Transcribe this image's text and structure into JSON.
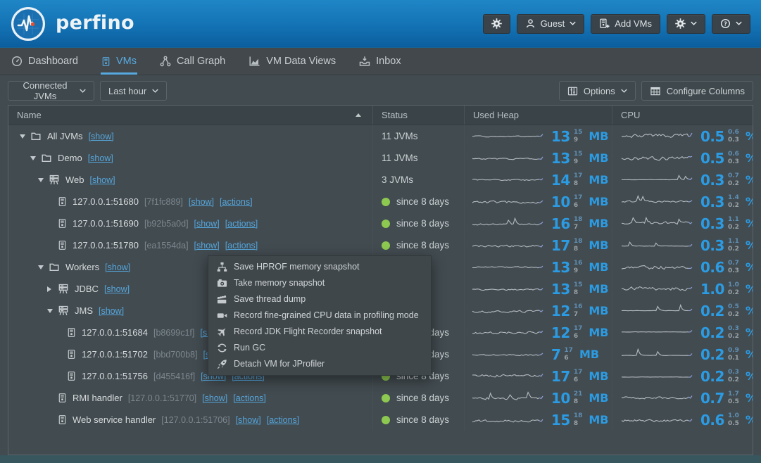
{
  "header": {
    "app_name": "perfino",
    "guest_label": "Guest",
    "add_vms_label": "Add VMs"
  },
  "nav": {
    "tabs": [
      {
        "label": "Dashboard",
        "icon": "dashboard-gauge-icon",
        "active": false
      },
      {
        "label": "VMs",
        "icon": "vm-icon",
        "active": true
      },
      {
        "label": "Call Graph",
        "icon": "call-graph-icon",
        "active": false
      },
      {
        "label": "VM Data Views",
        "icon": "chart-icon",
        "active": false
      },
      {
        "label": "Inbox",
        "icon": "inbox-icon",
        "active": false
      }
    ]
  },
  "filters": {
    "jvm_select_value": "Connected JVMs",
    "time_select_value": "Last hour",
    "options_label": "Options",
    "configure_columns_label": "Configure Columns"
  },
  "table": {
    "columns": [
      {
        "label": "Name",
        "sort": "asc"
      },
      {
        "label": "Status"
      },
      {
        "label": "Used Heap"
      },
      {
        "label": "CPU"
      }
    ],
    "rows": [
      {
        "name": "All JVMs",
        "suffix": null,
        "show_link": "[show]",
        "actions_link": null,
        "indent": 0,
        "expander": "open",
        "icon": "folder-icon",
        "status": {
          "kind": "count",
          "text": "11 JVMs"
        },
        "heap": {
          "value": "13",
          "max": "15",
          "min": "9",
          "unit": "MB",
          "spark": "wavy"
        },
        "cpu": {
          "value": "0.5",
          "max": "0.6",
          "min": "0.3",
          "unit": "%",
          "spark": "jagged"
        }
      },
      {
        "name": "Demo",
        "suffix": null,
        "show_link": "[show]",
        "actions_link": null,
        "indent": 1,
        "expander": "open",
        "icon": "folder-icon",
        "status": {
          "kind": "count",
          "text": "11 JVMs"
        },
        "heap": {
          "value": "13",
          "max": "15",
          "min": "9",
          "unit": "MB",
          "spark": "wavy"
        },
        "cpu": {
          "value": "0.5",
          "max": "0.6",
          "min": "0.3",
          "unit": "%",
          "spark": "jagged"
        }
      },
      {
        "name": "Web",
        "suffix": null,
        "show_link": "[show]",
        "actions_link": null,
        "indent": 2,
        "expander": "open",
        "icon": "group-icon",
        "status": {
          "kind": "count",
          "text": "3 JVMs"
        },
        "heap": {
          "value": "14",
          "max": "17",
          "min": "8",
          "unit": "MB",
          "spark": "wavy"
        },
        "cpu": {
          "value": "0.3",
          "max": "0.7",
          "min": "0.2",
          "unit": "%",
          "spark": "flatspike"
        }
      },
      {
        "name": "127.0.0.1:51680",
        "suffix": "[7f1fc889]",
        "show_link": "[show]",
        "actions_link": "[actions]",
        "indent": 4,
        "expander": null,
        "icon": "vm-icon",
        "status": {
          "kind": "up",
          "text": "since 8 days"
        },
        "heap": {
          "value": "10",
          "max": "17",
          "min": "6",
          "unit": "MB",
          "spark": "rough"
        },
        "cpu": {
          "value": "0.3",
          "max": "1.4",
          "min": "0.2",
          "unit": "%",
          "spark": "bumpy"
        }
      },
      {
        "name": "127.0.0.1:51690",
        "suffix": "[b92b5a0d]",
        "show_link": "[show]",
        "actions_link": "[actions]",
        "indent": 4,
        "expander": null,
        "icon": "vm-icon",
        "status": {
          "kind": "up",
          "text": "since 8 days"
        },
        "heap": {
          "value": "16",
          "max": "18",
          "min": "7",
          "unit": "MB",
          "spark": "bumpy"
        },
        "cpu": {
          "value": "0.3",
          "max": "1.1",
          "min": "0.2",
          "unit": "%",
          "spark": "spiky"
        }
      },
      {
        "name": "127.0.0.1:51780",
        "suffix": "[ea1554da]",
        "show_link": "[show]",
        "actions_link": "[actions]",
        "indent": 4,
        "expander": null,
        "icon": "vm-icon",
        "status": {
          "kind": "up",
          "text": "since 8 days"
        },
        "heap": {
          "value": "17",
          "max": "18",
          "min": "8",
          "unit": "MB",
          "spark": "rough"
        },
        "cpu": {
          "value": "0.3",
          "max": "1.1",
          "min": "0.2",
          "unit": "%",
          "spark": "flatspike"
        }
      },
      {
        "name": "Workers",
        "suffix": null,
        "show_link": "[show]",
        "actions_link": null,
        "indent": 2,
        "expander": "open",
        "icon": "folder-icon",
        "status": null,
        "heap": {
          "value": "13",
          "max": "16",
          "min": "9",
          "unit": "MB",
          "spark": "wavy"
        },
        "cpu": {
          "value": "0.6",
          "max": "0.7",
          "min": "0.3",
          "unit": "%",
          "spark": "jagged"
        }
      },
      {
        "name": "JDBC",
        "suffix": null,
        "show_link": "[show]",
        "actions_link": null,
        "indent": 3,
        "expander": "closed",
        "icon": "group-icon",
        "status": null,
        "heap": {
          "value": "13",
          "max": "15",
          "min": "8",
          "unit": "MB",
          "spark": "wavy"
        },
        "cpu": {
          "value": "1.0",
          "max": "1.0",
          "min": "0.2",
          "unit": "%",
          "spark": "jagged"
        }
      },
      {
        "name": "JMS",
        "suffix": null,
        "show_link": "[show]",
        "actions_link": null,
        "indent": 3,
        "expander": "open",
        "icon": "group-icon",
        "status": null,
        "heap": {
          "value": "12",
          "max": "16",
          "min": "7",
          "unit": "MB",
          "spark": "rough"
        },
        "cpu": {
          "value": "0.2",
          "max": "0.5",
          "min": "0.2",
          "unit": "%",
          "spark": "flatspike"
        }
      },
      {
        "name": "127.0.0.1:51684",
        "suffix": "[b8699c1f]",
        "show_link": "[show]",
        "actions_link": "[actions]",
        "indent": 5,
        "expander": null,
        "icon": "vm-icon",
        "status": {
          "kind": "up",
          "text": "since 8 days"
        },
        "heap": {
          "value": "12",
          "max": "17",
          "min": "6",
          "unit": "MB",
          "spark": "rough"
        },
        "cpu": {
          "value": "0.2",
          "max": "0.3",
          "min": "0.2",
          "unit": "%",
          "spark": "flat"
        }
      },
      {
        "name": "127.0.0.1:51702",
        "suffix": "[bbd700b8]",
        "show_link": "[show]",
        "actions_link": "[actions]",
        "indent": 5,
        "expander": null,
        "icon": "vm-icon",
        "status": {
          "kind": "up",
          "text": "since 8 days"
        },
        "heap": {
          "value": "7",
          "max": "17",
          "min": "6",
          "unit": "MB",
          "spark": "wavy"
        },
        "cpu": {
          "value": "0.2",
          "max": "0.9",
          "min": "0.1",
          "unit": "%",
          "spark": "flatspike"
        }
      },
      {
        "name": "127.0.0.1:51756",
        "suffix": "[d455416f]",
        "show_link": "[show]",
        "actions_link": "[actions]",
        "indent": 5,
        "expander": null,
        "icon": "vm-icon",
        "status": {
          "kind": "up",
          "text": "since 8 days"
        },
        "heap": {
          "value": "17",
          "max": "17",
          "min": "6",
          "unit": "MB",
          "spark": "rough"
        },
        "cpu": {
          "value": "0.2",
          "max": "0.3",
          "min": "0.2",
          "unit": "%",
          "spark": "flat"
        }
      },
      {
        "name": "RMI handler",
        "suffix": "[127.0.0.1:51770]",
        "show_link": "[show]",
        "actions_link": "[actions]",
        "indent": 4,
        "expander": null,
        "icon": "vm-icon",
        "status": {
          "kind": "up",
          "text": "since 8 days"
        },
        "heap": {
          "value": "10",
          "max": "21",
          "min": "8",
          "unit": "MB",
          "spark": "spiky"
        },
        "cpu": {
          "value": "0.7",
          "max": "1.7",
          "min": "0.5",
          "unit": "%",
          "spark": "rough"
        }
      },
      {
        "name": "Web service handler",
        "suffix": "[127.0.0.1:51706]",
        "show_link": "[show]",
        "actions_link": "[actions]",
        "indent": 4,
        "expander": null,
        "icon": "vm-icon",
        "status": {
          "kind": "up",
          "text": "since 8 days"
        },
        "heap": {
          "value": "15",
          "max": "18",
          "min": "8",
          "unit": "MB",
          "spark": "rough"
        },
        "cpu": {
          "value": "0.6",
          "max": "1.0",
          "min": "0.5",
          "unit": "%",
          "spark": "rough"
        }
      }
    ]
  },
  "context_menu": {
    "items": [
      {
        "label": "Save HPROF memory snapshot",
        "icon": "sitemap-icon"
      },
      {
        "label": "Take memory snapshot",
        "icon": "camera-icon"
      },
      {
        "label": "Save thread dump",
        "icon": "clapperboard-icon"
      },
      {
        "label": "Record fine-grained CPU data in profiling mode",
        "icon": "video-camera-icon"
      },
      {
        "label": "Record JDK Flight Recorder snapshot",
        "icon": "plane-icon"
      },
      {
        "label": "Run GC",
        "icon": "recycle-icon"
      },
      {
        "label": "Detach VM for JProfiler",
        "icon": "rocket-icon"
      }
    ]
  },
  "colors": {
    "accent_blue": "#2b9ce4",
    "link_blue": "#55a6dc",
    "status_green": "#8dc850",
    "header_gradient_top": "#1f86c6",
    "header_gradient_bottom": "#0c5e9e",
    "menu_background": "#40474b"
  }
}
